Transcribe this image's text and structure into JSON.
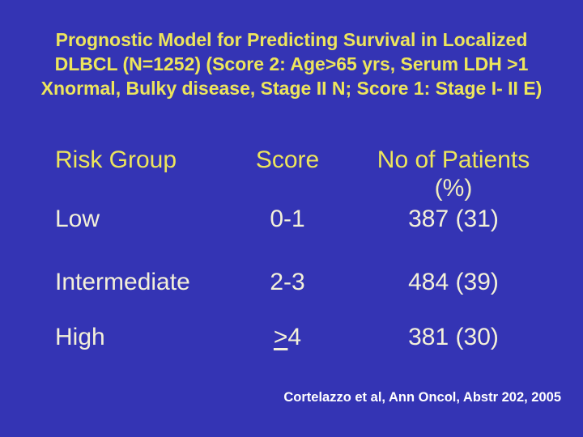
{
  "slide": {
    "title": {
      "lines": [
        "Prognostic Model for Predicting Survival in Localized",
        "DLBCL (N=1252) (Score 2: Age>65 yrs, Serum LDH >1",
        "Xnormal, Bulky disease, Stage II N; Score 1: Stage I- II E)"
      ]
    },
    "table": {
      "headers": {
        "risk_group": "Risk Group",
        "score": "Score",
        "patients_line1": "No of Patients",
        "patients_line2": "(%)"
      },
      "rows": [
        {
          "risk_group": "Low",
          "score_prefix": "",
          "score": "0-1",
          "patients": "387 (31)"
        },
        {
          "risk_group": "Intermediate",
          "score_prefix": "",
          "score": "2-3",
          "patients": "484 (39)"
        },
        {
          "risk_group": "High",
          "score_prefix": ">",
          "score": "4",
          "patients": "381 (30)"
        }
      ]
    },
    "citation": "Cortelazzo et al, Ann Oncol, Abstr 202, 2005",
    "colors": {
      "background": "#3434B4",
      "title_text": "#EDE55C",
      "header_text": "#EDE55C",
      "data_text": "#F3F0D9",
      "pct_text": "#F0ECBE",
      "citation_text": "#FFFFFF"
    }
  }
}
